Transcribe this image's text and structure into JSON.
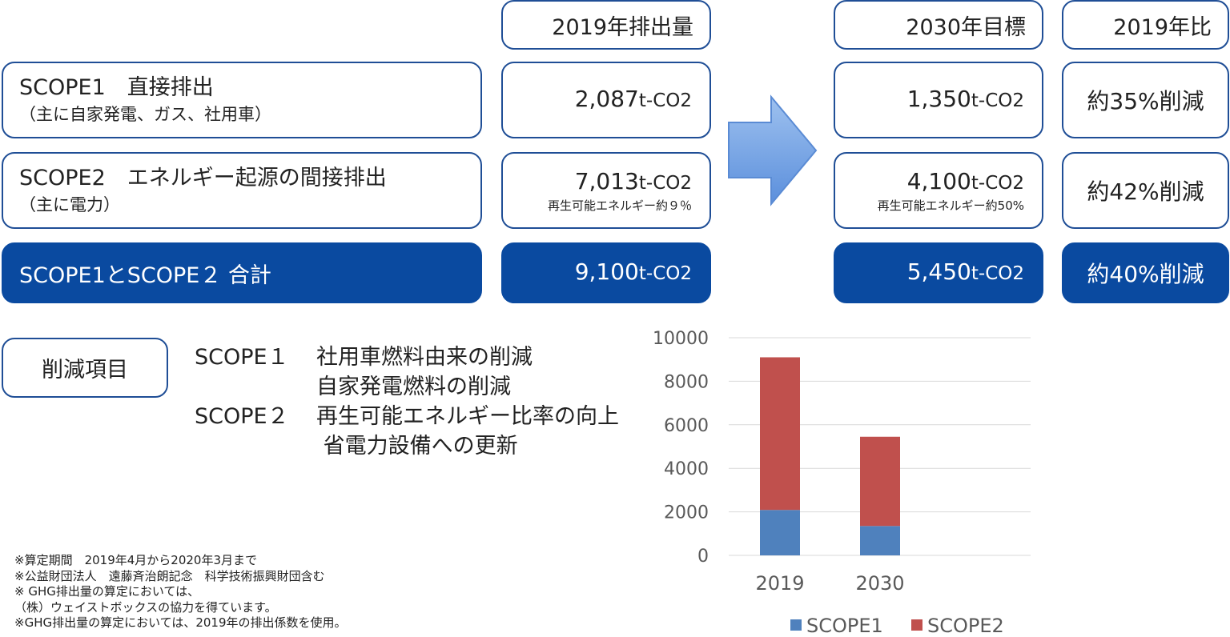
{
  "headers": {
    "emission_2019": "2019年排出量",
    "target_2030": "2030年目標",
    "vs_2019": "2019年比"
  },
  "unit": "t-CO2",
  "rows": [
    {
      "title": "SCOPE1　直接排出",
      "subtitle": "（主に自家発電、ガス、社用車）",
      "v2019": "2,087",
      "v2019_sub": "",
      "v2030": "1,350",
      "v2030_sub": "",
      "ratio": "約35%削減"
    },
    {
      "title": "SCOPE2　エネルギー起源の間接排出",
      "subtitle": "（主に電力）",
      "v2019": "7,013",
      "v2019_sub": "再生可能エネルギー約９％",
      "v2030": "4,100",
      "v2030_sub": "再生可能エネルギー約50%",
      "ratio": "約42%削減"
    },
    {
      "title": "SCOPE1とSCOPE２ 合計",
      "subtitle": "",
      "v2019": "9,100",
      "v2019_sub": "",
      "v2030": "5,450",
      "v2030_sub": "",
      "ratio": "約40%削減"
    }
  ],
  "reduction": {
    "label": "削減項目",
    "lines": [
      {
        "key": "SCOPE１",
        "text": "社用車燃料由来の削減"
      },
      {
        "key": "",
        "text": "自家発電燃料の削減"
      },
      {
        "key": "SCOPE２",
        "text": "再生可能エネルギー比率の向上"
      },
      {
        "key": "",
        "text": " 省電力設備への更新"
      }
    ]
  },
  "notes": [
    "※算定期間　2019年4月から2020年3月まで",
    "※公益財団法人　遠藤斉治朗記念　科学技術振興財団含む",
    "※ GHG排出量の算定においては、",
    "（株）ウェイストボックスの協力を得ています。",
    "※GHG排出量の算定においては、2019年の排出係数を使用。"
  ],
  "colors": {
    "primary": "#0a4aa0",
    "scope1": "#4f81bd",
    "scope2": "#c0504d",
    "arrow": "#6f9ee0"
  },
  "chart_data": {
    "type": "bar",
    "stacked": true,
    "categories": [
      "2019",
      "2030"
    ],
    "series": [
      {
        "name": "SCOPE1",
        "values": [
          2087,
          1350
        ],
        "color": "#4f81bd"
      },
      {
        "name": "SCOPE2",
        "values": [
          7013,
          4100
        ],
        "color": "#c0504d"
      }
    ],
    "ylim": [
      0,
      10000
    ],
    "yticks": [
      "0",
      "2000",
      "4000",
      "6000",
      "8000",
      "10000"
    ],
    "grid": true,
    "legend": "bottom"
  }
}
